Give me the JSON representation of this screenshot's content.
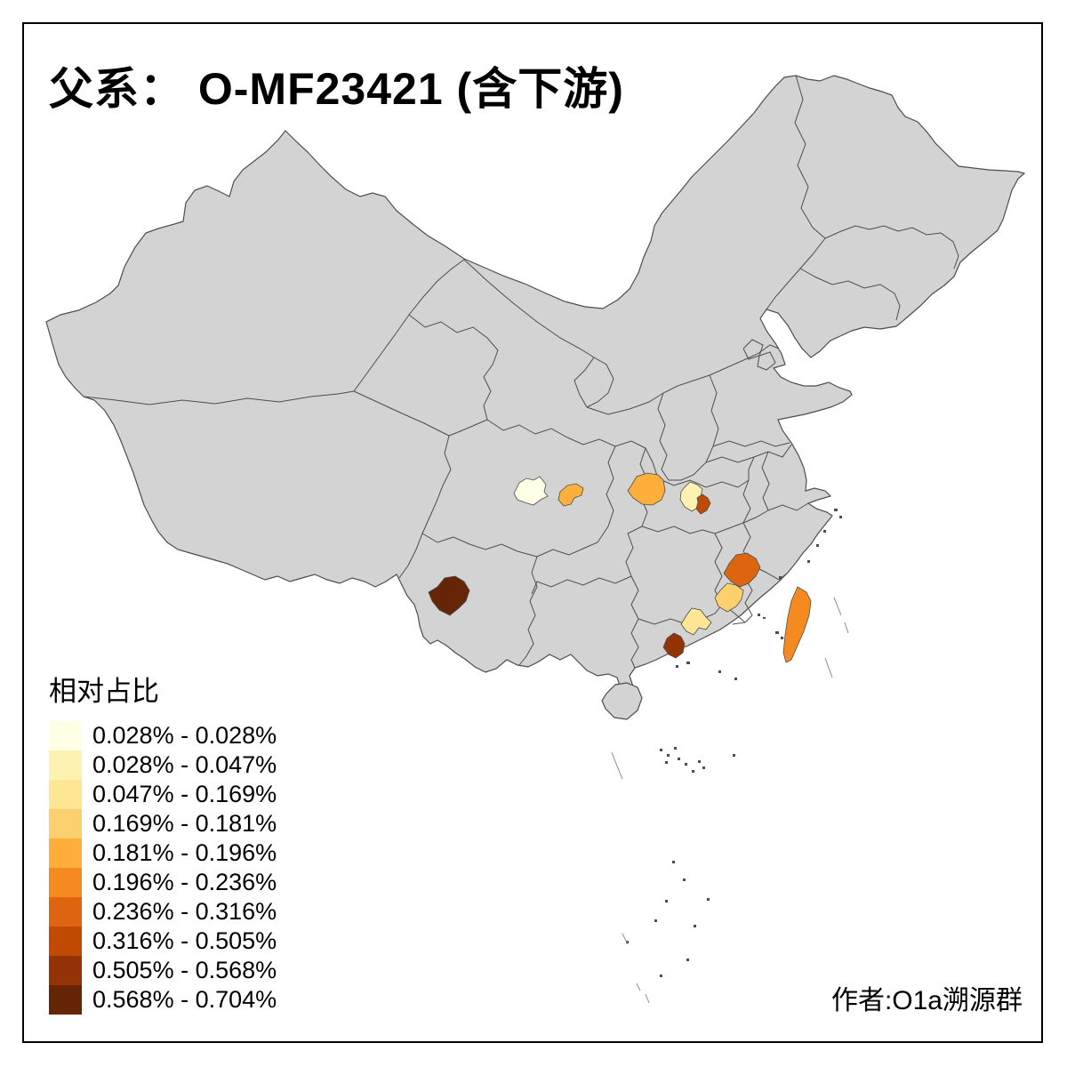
{
  "title": "父系： O-MF23421 (含下游)",
  "credit": "作者:O1a溯源群",
  "legend": {
    "title": "相对占比",
    "classes": [
      {
        "label": "0.028% - 0.028%",
        "color": "#FFFFE5"
      },
      {
        "label": "0.028% - 0.047%",
        "color": "#FDF2B2"
      },
      {
        "label": "0.047% - 0.169%",
        "color": "#FEE695"
      },
      {
        "label": "0.169% - 0.181%",
        "color": "#FDD06E"
      },
      {
        "label": "0.181% - 0.196%",
        "color": "#FDAE3B"
      },
      {
        "label": "0.196% - 0.236%",
        "color": "#F58A21"
      },
      {
        "label": "0.236% - 0.316%",
        "color": "#DD650F"
      },
      {
        "label": "0.316% - 0.505%",
        "color": "#C04A02"
      },
      {
        "label": "0.505% - 0.568%",
        "color": "#943305"
      },
      {
        "label": "0.568% - 0.704%",
        "color": "#662506"
      }
    ]
  },
  "map": {
    "land_color": "#D3D3D3",
    "border_color": "#4D4D4D",
    "regions": [
      {
        "id": "chengdu-area",
        "class_index": 0,
        "range": "0.028% - 0.028%"
      },
      {
        "id": "wuhan-surrounding",
        "class_index": 1,
        "range": "0.028% - 0.047%"
      },
      {
        "id": "heyuan-area",
        "class_index": 2,
        "range": "0.047% - 0.169%"
      },
      {
        "id": "longyan-area",
        "class_index": 3,
        "range": "0.169% - 0.181%"
      },
      {
        "id": "ne-sichuan-area",
        "class_index": 4,
        "range": "0.181% - 0.196%"
      },
      {
        "id": "west-hubei-area",
        "class_index": 4,
        "range": "0.181% - 0.196%"
      },
      {
        "id": "taiwan",
        "class_index": 5,
        "range": "0.196% - 0.236%"
      },
      {
        "id": "nanping-area",
        "class_index": 6,
        "range": "0.236% - 0.316%"
      },
      {
        "id": "wuhan-city",
        "class_index": 7,
        "range": "0.316% - 0.505%"
      },
      {
        "id": "pearl-river-delta",
        "class_index": 8,
        "range": "0.505% - 0.568%"
      },
      {
        "id": "west-yunnan-area",
        "class_index": 9,
        "range": "0.568% - 0.704%"
      }
    ]
  }
}
